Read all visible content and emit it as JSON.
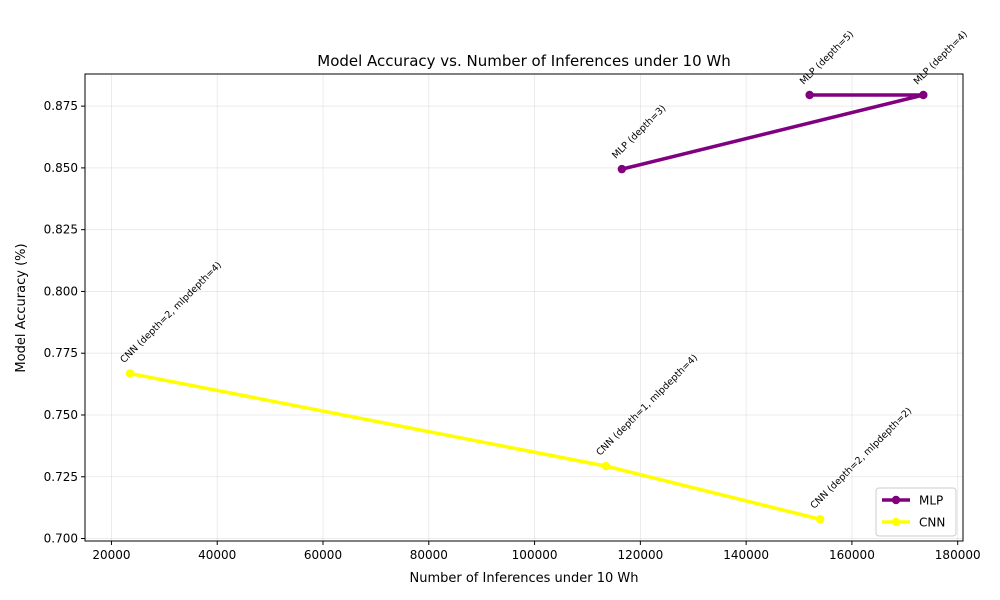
{
  "chart_data": {
    "type": "line",
    "title": "Model Accuracy vs. Number of Inferences under 10 Wh",
    "xlabel": "Number of Inferences under 10 Wh",
    "ylabel": "Model Accuracy (%)",
    "xlim": [
      15000,
      181000
    ],
    "ylim": [
      0.699,
      0.888
    ],
    "xticks": [
      20000,
      40000,
      60000,
      80000,
      100000,
      120000,
      140000,
      160000,
      180000
    ],
    "yticks": [
      0.7,
      0.725,
      0.75,
      0.775,
      0.8,
      0.825,
      0.85,
      0.875
    ],
    "grid": true,
    "legend_position": "lower right",
    "series": [
      {
        "name": "MLP",
        "color": "#800080",
        "points": [
          {
            "x": 116500,
            "y": 0.8495,
            "label": "MLP (depth=3)"
          },
          {
            "x": 173500,
            "y": 0.8795,
            "label": "MLP (depth=4)"
          },
          {
            "x": 152000,
            "y": 0.8795,
            "label": "MLP (depth=5)"
          }
        ]
      },
      {
        "name": "CNN",
        "color": "#ffff00",
        "points": [
          {
            "x": 23500,
            "y": 0.7668,
            "label": "CNN (depth=2, mlpdepth=4)"
          },
          {
            "x": 113500,
            "y": 0.7293,
            "label": "CNN (depth=1, mlpdepth=4)"
          },
          {
            "x": 154000,
            "y": 0.7078,
            "label": "CNN (depth=2, mlpdepth=2)"
          }
        ]
      }
    ]
  }
}
